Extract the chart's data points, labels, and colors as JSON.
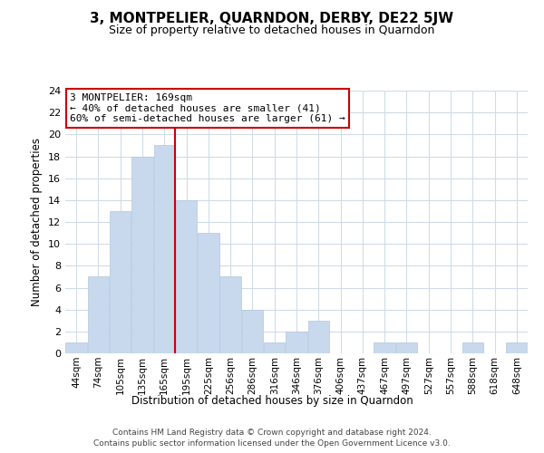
{
  "title": "3, MONTPELIER, QUARNDON, DERBY, DE22 5JW",
  "subtitle": "Size of property relative to detached houses in Quarndon",
  "xlabel": "Distribution of detached houses by size in Quarndon",
  "ylabel": "Number of detached properties",
  "bar_color": "#c8d8ed",
  "bar_edge_color": "#b0c8e0",
  "grid_color": "#d0dce8",
  "bin_labels": [
    "44sqm",
    "74sqm",
    "105sqm",
    "135sqm",
    "165sqm",
    "195sqm",
    "225sqm",
    "256sqm",
    "286sqm",
    "316sqm",
    "346sqm",
    "376sqm",
    "406sqm",
    "437sqm",
    "467sqm",
    "497sqm",
    "527sqm",
    "557sqm",
    "588sqm",
    "618sqm",
    "648sqm"
  ],
  "bar_values": [
    1,
    7,
    13,
    18,
    19,
    14,
    11,
    7,
    4,
    1,
    2,
    3,
    0,
    0,
    1,
    1,
    0,
    0,
    1,
    0,
    1
  ],
  "ylim": [
    0,
    24
  ],
  "yticks": [
    0,
    2,
    4,
    6,
    8,
    10,
    12,
    14,
    16,
    18,
    20,
    22,
    24
  ],
  "vline_color": "#cc0000",
  "annotation_title": "3 MONTPELIER: 169sqm",
  "annotation_line1": "← 40% of detached houses are smaller (41)",
  "annotation_line2": "60% of semi-detached houses are larger (61) →",
  "annotation_box_color": "#ffffff",
  "annotation_box_edge": "#cc0000",
  "footer1": "Contains HM Land Registry data © Crown copyright and database right 2024.",
  "footer2": "Contains public sector information licensed under the Open Government Licence v3.0."
}
